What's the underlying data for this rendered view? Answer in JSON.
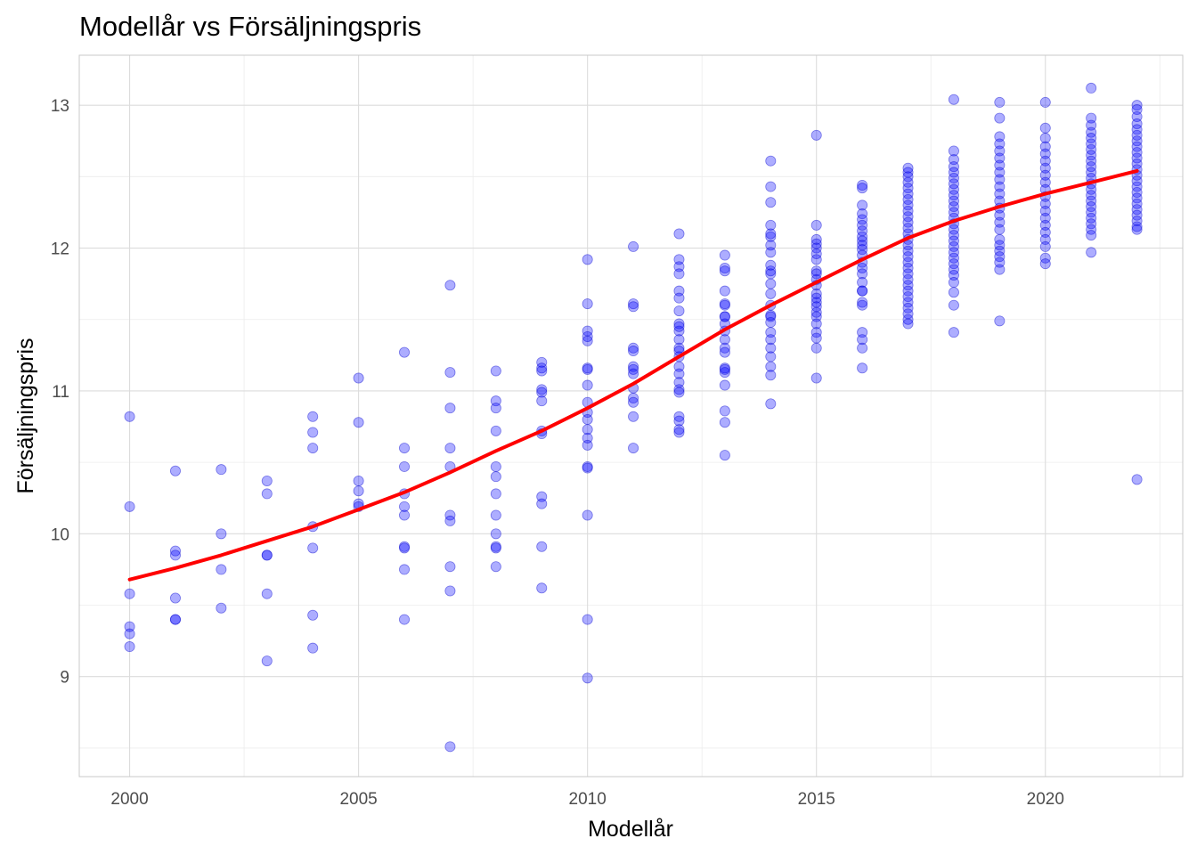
{
  "chart_data": {
    "type": "scatter",
    "title": "Modellår vs Försäljningspris",
    "xlabel": "Modellår",
    "ylabel": "Försäljningspris",
    "xlim": [
      1998.9,
      2023.0
    ],
    "ylim": [
      8.3,
      13.35
    ],
    "x_ticks": [
      2000,
      2005,
      2010,
      2015,
      2020
    ],
    "y_ticks": [
      9,
      10,
      11,
      12,
      13
    ],
    "x_tick_labels": [
      "2000",
      "2005",
      "2010",
      "2015",
      "2020"
    ],
    "y_tick_labels": [
      "9",
      "10",
      "11",
      "12",
      "13"
    ],
    "grid": true,
    "colors": {
      "points": "#0000ff",
      "trend": "#ff0000"
    },
    "points": [
      [
        2000,
        10.82
      ],
      [
        2000,
        10.19
      ],
      [
        2000,
        9.58
      ],
      [
        2000,
        9.35
      ],
      [
        2000,
        9.3
      ],
      [
        2000,
        9.21
      ],
      [
        2001,
        10.44
      ],
      [
        2001,
        9.88
      ],
      [
        2001,
        9.85
      ],
      [
        2001,
        9.55
      ],
      [
        2001,
        9.4
      ],
      [
        2001,
        9.4
      ],
      [
        2002,
        10.45
      ],
      [
        2002,
        10.0
      ],
      [
        2002,
        9.75
      ],
      [
        2002,
        9.48
      ],
      [
        2003,
        10.37
      ],
      [
        2003,
        10.28
      ],
      [
        2003,
        9.85
      ],
      [
        2003,
        9.85
      ],
      [
        2003,
        9.58
      ],
      [
        2003,
        9.11
      ],
      [
        2004,
        10.82
      ],
      [
        2004,
        10.71
      ],
      [
        2004,
        10.6
      ],
      [
        2004,
        10.05
      ],
      [
        2004,
        9.9
      ],
      [
        2004,
        9.43
      ],
      [
        2004,
        9.2
      ],
      [
        2005,
        11.09
      ],
      [
        2005,
        10.78
      ],
      [
        2005,
        10.37
      ],
      [
        2005,
        10.3
      ],
      [
        2005,
        10.21
      ],
      [
        2005,
        10.19
      ],
      [
        2006,
        11.27
      ],
      [
        2006,
        10.6
      ],
      [
        2006,
        10.47
      ],
      [
        2006,
        10.28
      ],
      [
        2006,
        10.19
      ],
      [
        2006,
        10.13
      ],
      [
        2006,
        9.91
      ],
      [
        2006,
        9.9
      ],
      [
        2006,
        9.75
      ],
      [
        2006,
        9.4
      ],
      [
        2007,
        11.74
      ],
      [
        2007,
        11.13
      ],
      [
        2007,
        10.88
      ],
      [
        2007,
        10.6
      ],
      [
        2007,
        10.47
      ],
      [
        2007,
        10.13
      ],
      [
        2007,
        10.09
      ],
      [
        2007,
        9.77
      ],
      [
        2007,
        9.6
      ],
      [
        2007,
        8.51
      ],
      [
        2008,
        11.14
      ],
      [
        2008,
        10.93
      ],
      [
        2008,
        10.88
      ],
      [
        2008,
        10.72
      ],
      [
        2008,
        10.47
      ],
      [
        2008,
        10.4
      ],
      [
        2008,
        10.28
      ],
      [
        2008,
        10.13
      ],
      [
        2008,
        10.0
      ],
      [
        2008,
        9.91
      ],
      [
        2008,
        9.9
      ],
      [
        2008,
        9.77
      ],
      [
        2009,
        11.2
      ],
      [
        2009,
        11.16
      ],
      [
        2009,
        11.14
      ],
      [
        2009,
        11.01
      ],
      [
        2009,
        10.99
      ],
      [
        2009,
        10.93
      ],
      [
        2009,
        10.72
      ],
      [
        2009,
        10.7
      ],
      [
        2009,
        10.26
      ],
      [
        2009,
        10.21
      ],
      [
        2009,
        9.91
      ],
      [
        2009,
        9.62
      ],
      [
        2010,
        11.92
      ],
      [
        2010,
        11.61
      ],
      [
        2010,
        11.42
      ],
      [
        2010,
        11.38
      ],
      [
        2010,
        11.35
      ],
      [
        2010,
        11.16
      ],
      [
        2010,
        11.15
      ],
      [
        2010,
        11.04
      ],
      [
        2010,
        10.92
      ],
      [
        2010,
        10.85
      ],
      [
        2010,
        10.8
      ],
      [
        2010,
        10.73
      ],
      [
        2010,
        10.67
      ],
      [
        2010,
        10.62
      ],
      [
        2010,
        10.47
      ],
      [
        2010,
        10.46
      ],
      [
        2010,
        10.13
      ],
      [
        2010,
        9.4
      ],
      [
        2010,
        8.99
      ],
      [
        2011,
        12.01
      ],
      [
        2011,
        11.61
      ],
      [
        2011,
        11.59
      ],
      [
        2011,
        11.3
      ],
      [
        2011,
        11.28
      ],
      [
        2011,
        11.17
      ],
      [
        2011,
        11.15
      ],
      [
        2011,
        11.12
      ],
      [
        2011,
        10.95
      ],
      [
        2011,
        10.92
      ],
      [
        2011,
        10.82
      ],
      [
        2011,
        10.6
      ],
      [
        2011,
        11.02
      ],
      [
        2012,
        12.1
      ],
      [
        2012,
        11.92
      ],
      [
        2012,
        11.87
      ],
      [
        2012,
        11.82
      ],
      [
        2012,
        11.7
      ],
      [
        2012,
        11.65
      ],
      [
        2012,
        11.56
      ],
      [
        2012,
        11.47
      ],
      [
        2012,
        11.42
      ],
      [
        2012,
        11.36
      ],
      [
        2012,
        11.3
      ],
      [
        2012,
        11.24
      ],
      [
        2012,
        11.17
      ],
      [
        2012,
        11.12
      ],
      [
        2012,
        11.06
      ],
      [
        2012,
        11.01
      ],
      [
        2012,
        10.99
      ],
      [
        2012,
        10.82
      ],
      [
        2012,
        10.79
      ],
      [
        2012,
        10.73
      ],
      [
        2012,
        10.71
      ],
      [
        2012,
        11.28
      ],
      [
        2012,
        11.45
      ],
      [
        2013,
        11.95
      ],
      [
        2013,
        11.86
      ],
      [
        2013,
        11.84
      ],
      [
        2013,
        11.7
      ],
      [
        2013,
        11.61
      ],
      [
        2013,
        11.6
      ],
      [
        2013,
        11.52
      ],
      [
        2013,
        11.47
      ],
      [
        2013,
        11.42
      ],
      [
        2013,
        11.36
      ],
      [
        2013,
        11.3
      ],
      [
        2013,
        11.27
      ],
      [
        2013,
        11.16
      ],
      [
        2013,
        11.13
      ],
      [
        2013,
        11.04
      ],
      [
        2013,
        10.86
      ],
      [
        2013,
        10.78
      ],
      [
        2013,
        10.55
      ],
      [
        2013,
        11.52
      ],
      [
        2013,
        11.15
      ],
      [
        2014,
        12.61
      ],
      [
        2014,
        12.43
      ],
      [
        2014,
        12.32
      ],
      [
        2014,
        12.16
      ],
      [
        2014,
        12.08
      ],
      [
        2014,
        12.02
      ],
      [
        2014,
        11.97
      ],
      [
        2014,
        11.88
      ],
      [
        2014,
        11.84
      ],
      [
        2014,
        11.75
      ],
      [
        2014,
        11.68
      ],
      [
        2014,
        11.6
      ],
      [
        2014,
        11.52
      ],
      [
        2014,
        11.48
      ],
      [
        2014,
        11.41
      ],
      [
        2014,
        11.36
      ],
      [
        2014,
        11.3
      ],
      [
        2014,
        11.24
      ],
      [
        2014,
        11.17
      ],
      [
        2014,
        11.11
      ],
      [
        2014,
        10.91
      ],
      [
        2014,
        11.53
      ],
      [
        2014,
        11.82
      ],
      [
        2014,
        12.1
      ],
      [
        2015,
        12.79
      ],
      [
        2015,
        12.16
      ],
      [
        2015,
        12.06
      ],
      [
        2015,
        12.03
      ],
      [
        2015,
        12.0
      ],
      [
        2015,
        11.96
      ],
      [
        2015,
        11.92
      ],
      [
        2015,
        11.84
      ],
      [
        2015,
        11.82
      ],
      [
        2015,
        11.78
      ],
      [
        2015,
        11.74
      ],
      [
        2015,
        11.68
      ],
      [
        2015,
        11.65
      ],
      [
        2015,
        11.62
      ],
      [
        2015,
        11.59
      ],
      [
        2015,
        11.55
      ],
      [
        2015,
        11.52
      ],
      [
        2015,
        11.47
      ],
      [
        2015,
        11.41
      ],
      [
        2015,
        11.37
      ],
      [
        2015,
        11.3
      ],
      [
        2015,
        11.09
      ],
      [
        2016,
        12.44
      ],
      [
        2016,
        12.42
      ],
      [
        2016,
        12.3
      ],
      [
        2016,
        12.24
      ],
      [
        2016,
        12.2
      ],
      [
        2016,
        12.16
      ],
      [
        2016,
        12.12
      ],
      [
        2016,
        12.08
      ],
      [
        2016,
        12.05
      ],
      [
        2016,
        12.02
      ],
      [
        2016,
        11.99
      ],
      [
        2016,
        11.95
      ],
      [
        2016,
        11.9
      ],
      [
        2016,
        11.86
      ],
      [
        2016,
        11.82
      ],
      [
        2016,
        11.76
      ],
      [
        2016,
        11.7
      ],
      [
        2016,
        11.62
      ],
      [
        2016,
        11.6
      ],
      [
        2016,
        11.41
      ],
      [
        2016,
        11.36
      ],
      [
        2016,
        11.3
      ],
      [
        2016,
        11.16
      ],
      [
        2016,
        11.7
      ],
      [
        2017,
        12.56
      ],
      [
        2017,
        12.53
      ],
      [
        2017,
        12.5
      ],
      [
        2017,
        12.46
      ],
      [
        2017,
        12.42
      ],
      [
        2017,
        12.38
      ],
      [
        2017,
        12.34
      ],
      [
        2017,
        12.3
      ],
      [
        2017,
        12.26
      ],
      [
        2017,
        12.22
      ],
      [
        2017,
        12.18
      ],
      [
        2017,
        12.14
      ],
      [
        2017,
        12.1
      ],
      [
        2017,
        12.06
      ],
      [
        2017,
        12.02
      ],
      [
        2017,
        11.98
      ],
      [
        2017,
        11.94
      ],
      [
        2017,
        11.9
      ],
      [
        2017,
        11.86
      ],
      [
        2017,
        11.82
      ],
      [
        2017,
        11.78
      ],
      [
        2017,
        11.74
      ],
      [
        2017,
        11.7
      ],
      [
        2017,
        11.66
      ],
      [
        2017,
        11.62
      ],
      [
        2017,
        11.58
      ],
      [
        2017,
        11.54
      ],
      [
        2017,
        11.5
      ],
      [
        2017,
        11.47
      ],
      [
        2018,
        13.04
      ],
      [
        2018,
        12.68
      ],
      [
        2018,
        12.62
      ],
      [
        2018,
        12.57
      ],
      [
        2018,
        12.53
      ],
      [
        2018,
        12.49
      ],
      [
        2018,
        12.45
      ],
      [
        2018,
        12.41
      ],
      [
        2018,
        12.37
      ],
      [
        2018,
        12.33
      ],
      [
        2018,
        12.29
      ],
      [
        2018,
        12.25
      ],
      [
        2018,
        12.21
      ],
      [
        2018,
        12.17
      ],
      [
        2018,
        12.13
      ],
      [
        2018,
        12.09
      ],
      [
        2018,
        12.05
      ],
      [
        2018,
        12.01
      ],
      [
        2018,
        11.97
      ],
      [
        2018,
        11.93
      ],
      [
        2018,
        11.89
      ],
      [
        2018,
        11.85
      ],
      [
        2018,
        11.81
      ],
      [
        2018,
        11.76
      ],
      [
        2018,
        11.69
      ],
      [
        2018,
        11.6
      ],
      [
        2018,
        11.41
      ],
      [
        2019,
        13.02
      ],
      [
        2019,
        12.91
      ],
      [
        2019,
        12.78
      ],
      [
        2019,
        12.73
      ],
      [
        2019,
        12.68
      ],
      [
        2019,
        12.63
      ],
      [
        2019,
        12.58
      ],
      [
        2019,
        12.53
      ],
      [
        2019,
        12.48
      ],
      [
        2019,
        12.43
      ],
      [
        2019,
        12.38
      ],
      [
        2019,
        12.33
      ],
      [
        2019,
        12.28
      ],
      [
        2019,
        12.23
      ],
      [
        2019,
        12.18
      ],
      [
        2019,
        12.13
      ],
      [
        2019,
        12.06
      ],
      [
        2019,
        12.02
      ],
      [
        2019,
        11.98
      ],
      [
        2019,
        11.94
      ],
      [
        2019,
        11.9
      ],
      [
        2019,
        11.85
      ],
      [
        2019,
        11.49
      ],
      [
        2020,
        13.02
      ],
      [
        2020,
        12.84
      ],
      [
        2020,
        12.77
      ],
      [
        2020,
        12.71
      ],
      [
        2020,
        12.66
      ],
      [
        2020,
        12.61
      ],
      [
        2020,
        12.56
      ],
      [
        2020,
        12.51
      ],
      [
        2020,
        12.46
      ],
      [
        2020,
        12.41
      ],
      [
        2020,
        12.36
      ],
      [
        2020,
        12.31
      ],
      [
        2020,
        12.26
      ],
      [
        2020,
        12.21
      ],
      [
        2020,
        12.16
      ],
      [
        2020,
        12.11
      ],
      [
        2020,
        12.06
      ],
      [
        2020,
        12.01
      ],
      [
        2020,
        11.93
      ],
      [
        2020,
        11.89
      ],
      [
        2021,
        13.12
      ],
      [
        2021,
        12.91
      ],
      [
        2021,
        12.86
      ],
      [
        2021,
        12.81
      ],
      [
        2021,
        12.77
      ],
      [
        2021,
        12.73
      ],
      [
        2021,
        12.69
      ],
      [
        2021,
        12.65
      ],
      [
        2021,
        12.61
      ],
      [
        2021,
        12.57
      ],
      [
        2021,
        12.53
      ],
      [
        2021,
        12.49
      ],
      [
        2021,
        12.45
      ],
      [
        2021,
        12.41
      ],
      [
        2021,
        12.37
      ],
      [
        2021,
        12.33
      ],
      [
        2021,
        12.29
      ],
      [
        2021,
        12.25
      ],
      [
        2021,
        12.21
      ],
      [
        2021,
        12.17
      ],
      [
        2021,
        12.13
      ],
      [
        2021,
        12.09
      ],
      [
        2021,
        11.97
      ],
      [
        2022,
        13.0
      ],
      [
        2022,
        12.97
      ],
      [
        2022,
        12.92
      ],
      [
        2022,
        12.87
      ],
      [
        2022,
        12.83
      ],
      [
        2022,
        12.79
      ],
      [
        2022,
        12.75
      ],
      [
        2022,
        12.71
      ],
      [
        2022,
        12.67
      ],
      [
        2022,
        12.63
      ],
      [
        2022,
        12.59
      ],
      [
        2022,
        12.55
      ],
      [
        2022,
        12.51
      ],
      [
        2022,
        12.47
      ],
      [
        2022,
        12.43
      ],
      [
        2022,
        12.39
      ],
      [
        2022,
        12.35
      ],
      [
        2022,
        12.31
      ],
      [
        2022,
        12.27
      ],
      [
        2022,
        12.23
      ],
      [
        2022,
        12.19
      ],
      [
        2022,
        12.15
      ],
      [
        2022,
        12.13
      ],
      [
        2022,
        10.38
      ]
    ],
    "trend": {
      "x": [
        2000,
        2001,
        2002,
        2003,
        2004,
        2005,
        2006,
        2007,
        2008,
        2009,
        2010,
        2011,
        2012,
        2013,
        2014,
        2015,
        2016,
        2017,
        2018,
        2019,
        2020,
        2021,
        2022
      ],
      "y": [
        9.68,
        9.76,
        9.85,
        9.95,
        10.05,
        10.17,
        10.29,
        10.43,
        10.58,
        10.72,
        10.88,
        11.05,
        11.24,
        11.43,
        11.6,
        11.76,
        11.92,
        12.07,
        12.19,
        12.29,
        12.38,
        12.46,
        12.54
      ]
    }
  }
}
